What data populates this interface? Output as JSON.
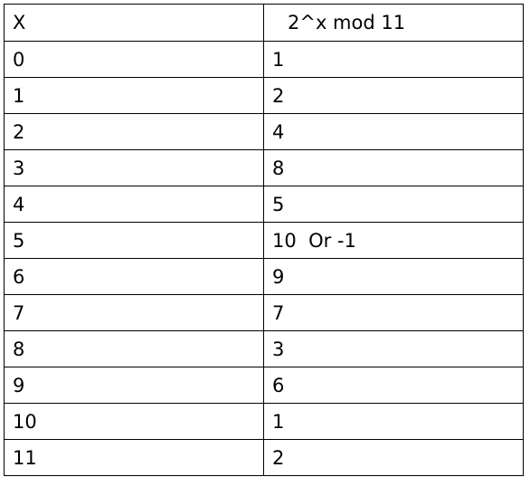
{
  "table": {
    "headers": [
      "X",
      "2^x mod 11"
    ],
    "rows": [
      [
        "0",
        "1"
      ],
      [
        "1",
        "2"
      ],
      [
        "2",
        "4"
      ],
      [
        "3",
        "8"
      ],
      [
        "4",
        "5"
      ],
      [
        "5",
        "10  Or -1"
      ],
      [
        "6",
        "9"
      ],
      [
        "7",
        "7"
      ],
      [
        "8",
        "3"
      ],
      [
        "9",
        "6"
      ],
      [
        "10",
        "1"
      ],
      [
        "11",
        "2"
      ]
    ]
  }
}
